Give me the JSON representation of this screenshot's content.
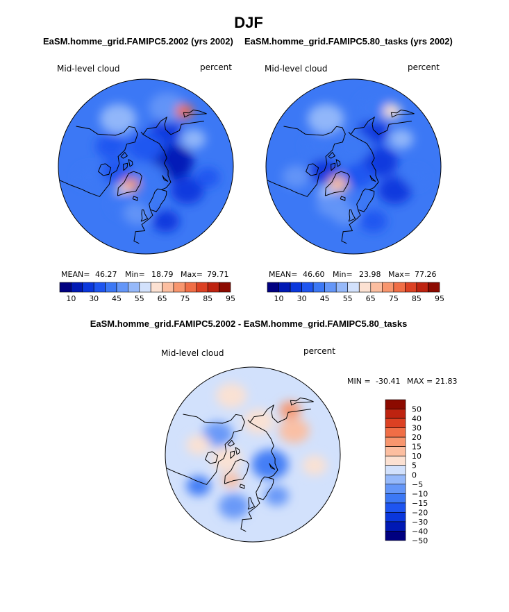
{
  "chart_data": {
    "type": "heatmap",
    "projection": "polar-stereographic",
    "season_title": "DJF",
    "panels": [
      {
        "id": "model",
        "title": "EaSM.homme_grid.FAMIPC5.2002 (yrs 2002)",
        "variable": "Mid-level cloud",
        "units": "percent",
        "mean_label": "MEAN=",
        "mean": "46.27",
        "min_label": "Min=",
        "min": "18.79",
        "max_label": "Max=",
        "max": "79.71",
        "regions": [
          {
            "lat": 55,
            "lon": 60,
            "r": 11,
            "value": 30
          },
          {
            "lat": 70,
            "lon": 100,
            "r": 14,
            "value": 25
          },
          {
            "lat": 60,
            "lon": 150,
            "r": 10,
            "value": 30
          },
          {
            "lat": 75,
            "lon": 180,
            "r": 12,
            "value": 40
          },
          {
            "lat": 50,
            "lon": 120,
            "r": 8,
            "value": 55
          },
          {
            "lat": 45,
            "lon": 160,
            "r": 12,
            "value": 50
          },
          {
            "lat": 42,
            "lon": 145,
            "r": 6,
            "value": 80
          },
          {
            "lat": 50,
            "lon": -150,
            "r": 12,
            "value": 55
          },
          {
            "lat": 60,
            "lon": -120,
            "r": 10,
            "value": 40
          },
          {
            "lat": 68,
            "lon": -80,
            "r": 10,
            "value": 40
          },
          {
            "lat": 72,
            "lon": -40,
            "r": 6,
            "value": 75
          },
          {
            "lat": 65,
            "lon": -42,
            "r": 5,
            "value": 65
          },
          {
            "lat": 58,
            "lon": -30,
            "r": 10,
            "value": 45
          },
          {
            "lat": 55,
            "lon": -10,
            "r": 9,
            "value": 50
          },
          {
            "lat": 62,
            "lon": 10,
            "r": 7,
            "value": 45
          },
          {
            "lat": 48,
            "lon": 20,
            "r": 9,
            "value": 35
          },
          {
            "lat": 82,
            "lon": 30,
            "r": 10,
            "value": 45
          },
          {
            "lat": 48,
            "lon": -80,
            "r": 9,
            "value": 45
          },
          {
            "lat": 45,
            "lon": 80,
            "r": 8,
            "value": 40
          }
        ]
      },
      {
        "id": "obs",
        "title": "EaSM.homme_grid.FAMIPC5.80_tasks (yrs 2002)",
        "variable": "Mid-level cloud",
        "units": "percent",
        "mean_label": "MEAN=",
        "mean": "46.60",
        "min_label": "Min=",
        "min": "23.98",
        "max_label": "Max=",
        "max": "77.26",
        "regions": [
          {
            "lat": 55,
            "lon": 60,
            "r": 11,
            "value": 35
          },
          {
            "lat": 70,
            "lon": 100,
            "r": 12,
            "value": 30
          },
          {
            "lat": 60,
            "lon": 150,
            "r": 10,
            "value": 35
          },
          {
            "lat": 75,
            "lon": 180,
            "r": 12,
            "value": 45
          },
          {
            "lat": 50,
            "lon": 120,
            "r": 8,
            "value": 55
          },
          {
            "lat": 45,
            "lon": 160,
            "r": 12,
            "value": 45
          },
          {
            "lat": 42,
            "lon": 145,
            "r": 6,
            "value": 65
          },
          {
            "lat": 50,
            "lon": -150,
            "r": 12,
            "value": 55
          },
          {
            "lat": 60,
            "lon": -120,
            "r": 10,
            "value": 45
          },
          {
            "lat": 68,
            "lon": -80,
            "r": 10,
            "value": 35
          },
          {
            "lat": 73,
            "lon": -40,
            "r": 7,
            "value": 70
          },
          {
            "lat": 62,
            "lon": -45,
            "r": 5,
            "value": 62
          },
          {
            "lat": 58,
            "lon": -30,
            "r": 10,
            "value": 50
          },
          {
            "lat": 55,
            "lon": -10,
            "r": 9,
            "value": 50
          },
          {
            "lat": 62,
            "lon": 10,
            "r": 7,
            "value": 45
          },
          {
            "lat": 48,
            "lon": 20,
            "r": 9,
            "value": 40
          },
          {
            "lat": 82,
            "lon": 30,
            "r": 10,
            "value": 40
          },
          {
            "lat": 48,
            "lon": -80,
            "r": 9,
            "value": 50
          },
          {
            "lat": 45,
            "lon": 80,
            "r": 8,
            "value": 45
          }
        ]
      },
      {
        "id": "diff",
        "title": "EaSM.homme_grid.FAMIPC5.2002 - EaSM.homme_grid.FAMIPC5.80_tasks",
        "variable": "Mid-level cloud",
        "units": "percent",
        "min_label": "MIN =",
        "min": "-30.41",
        "max_label": "MAX =",
        "max": "21.83",
        "regions": [
          {
            "lat": 55,
            "lon": 120,
            "r": 10,
            "value": 12
          },
          {
            "lat": 48,
            "lon": 140,
            "r": 7,
            "value": 15
          },
          {
            "lat": 70,
            "lon": -80,
            "r": 10,
            "value": 8
          },
          {
            "lat": 65,
            "lon": -40,
            "r": 6,
            "value": 12
          },
          {
            "lat": 60,
            "lon": -120,
            "r": 10,
            "value": -6
          },
          {
            "lat": 50,
            "lon": -20,
            "r": 10,
            "value": -8
          },
          {
            "lat": 55,
            "lon": 30,
            "r": 8,
            "value": -10
          },
          {
            "lat": 75,
            "lon": 60,
            "r": 12,
            "value": -12
          },
          {
            "lat": 65,
            "lon": 170,
            "r": 10,
            "value": 5
          },
          {
            "lat": 45,
            "lon": -160,
            "r": 10,
            "value": 6
          },
          {
            "lat": 45,
            "lon": 80,
            "r": 8,
            "value": 8
          },
          {
            "lat": 45,
            "lon": -60,
            "r": 8,
            "value": -12
          },
          {
            "lat": 50,
            "lon": -100,
            "r": 8,
            "value": 6
          }
        ]
      }
    ],
    "colorbar_abs": {
      "levels": [
        10,
        20,
        30,
        40,
        45,
        50,
        55,
        60,
        65,
        70,
        75,
        80,
        85,
        90,
        95
      ],
      "tick_labels": [
        "10",
        "30",
        "45",
        "55",
        "65",
        "75",
        "85",
        "95"
      ],
      "colors": [
        "#000080",
        "#0019b4",
        "#0a37dc",
        "#1e55f0",
        "#3c78f5",
        "#6496f8",
        "#96b9fa",
        "#d2e1fc",
        "#fce1d2",
        "#fcbea0",
        "#f8966e",
        "#f06e46",
        "#dc4123",
        "#be2310",
        "#8c0a00"
      ]
    },
    "colorbar_diff": {
      "levels": [
        -50,
        -40,
        -30,
        -20,
        -15,
        -10,
        -5,
        0,
        5,
        10,
        15,
        20,
        30,
        40,
        50
      ],
      "tick_labels": [
        "50",
        "40",
        "30",
        "20",
        "15",
        "10",
        "5",
        "0",
        "−5",
        "−10",
        "−15",
        "−20",
        "−30",
        "−40",
        "−50"
      ],
      "colors": [
        "#000080",
        "#0019b4",
        "#0a37dc",
        "#1e55f0",
        "#3c78f5",
        "#6496f8",
        "#96b9fa",
        "#d2e1fc",
        "#fce1d2",
        "#fcbea0",
        "#f8966e",
        "#f06e46",
        "#dc4123",
        "#be2310",
        "#8c0a00"
      ]
    }
  }
}
